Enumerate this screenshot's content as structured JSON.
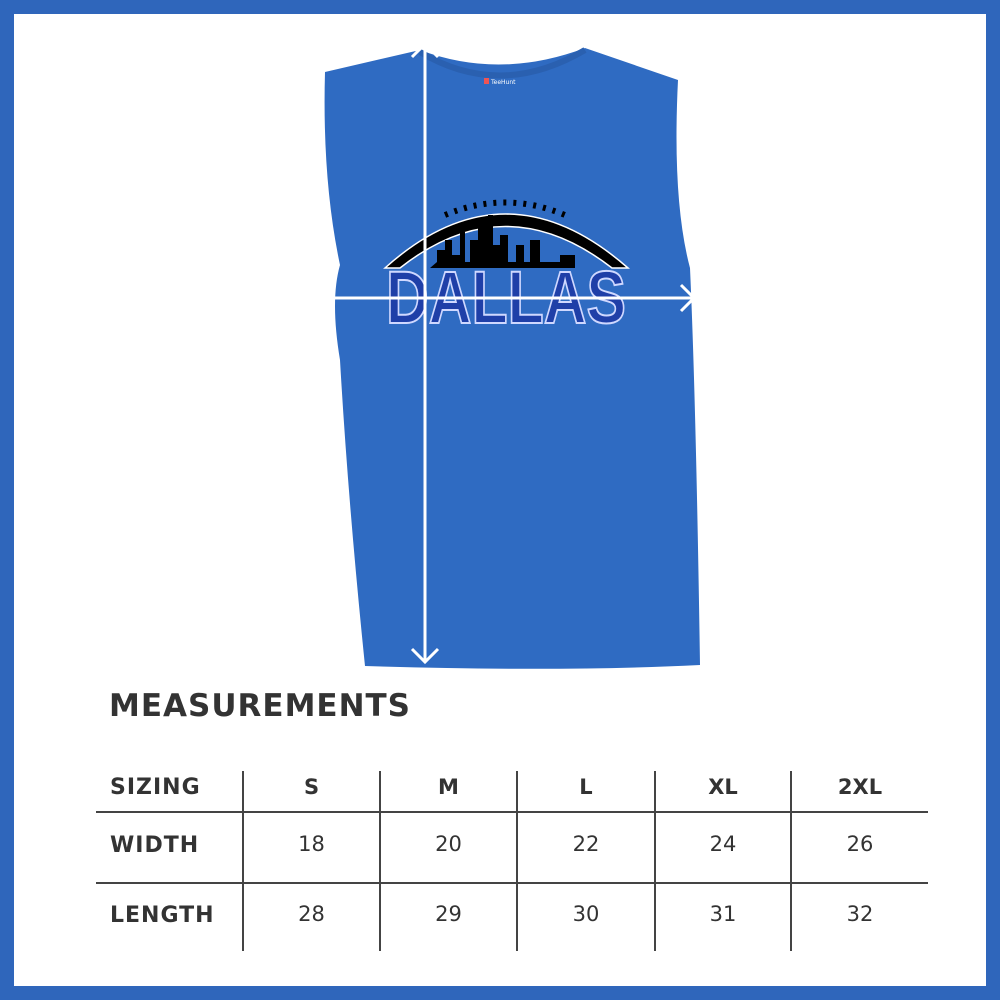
{
  "colors": {
    "border": "#2f66bb",
    "shirt": "#2f6bc2",
    "text_blue": "#1f3fa8",
    "ink": "#333333"
  },
  "product": {
    "graphic_text": "DALLAS",
    "tag_brand": "TeeHunt"
  },
  "measurements": {
    "title": "MEASUREMENTS",
    "header": [
      "SIZING",
      "S",
      "M",
      "L",
      "XL",
      "2XL"
    ],
    "rows": [
      {
        "label": "WIDTH",
        "values": [
          "18",
          "20",
          "22",
          "24",
          "26"
        ]
      },
      {
        "label": "LENGTH",
        "values": [
          "28",
          "29",
          "30",
          "31",
          "32"
        ]
      }
    ]
  }
}
